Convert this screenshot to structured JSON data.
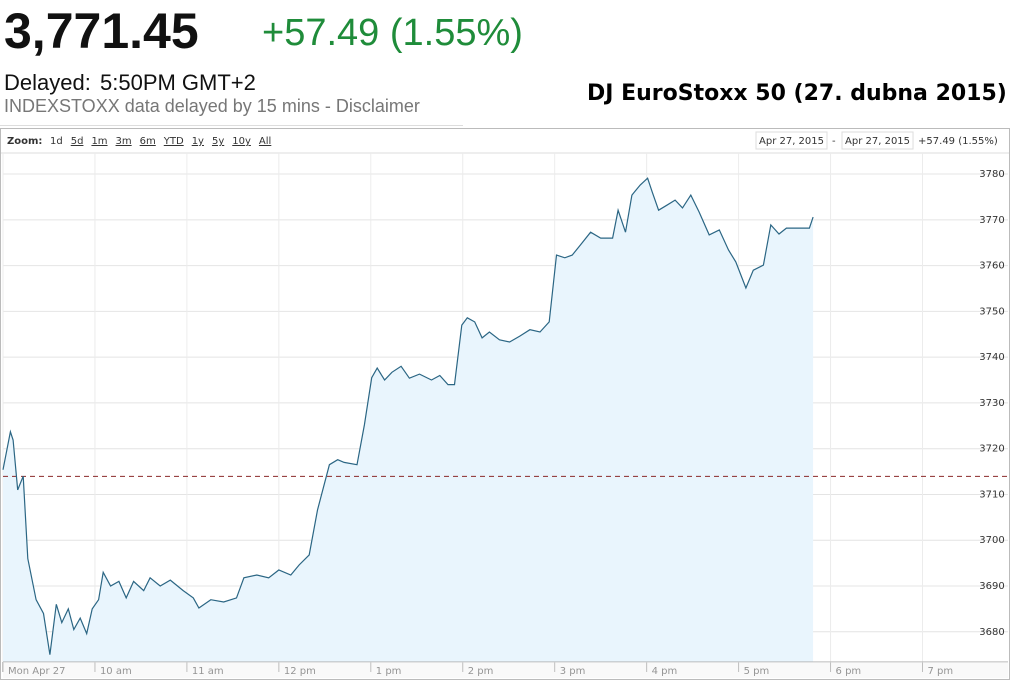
{
  "header": {
    "price": "3,771.45",
    "change": "+57.49 (1.55%)",
    "delayed_label": "Delayed:",
    "delayed_time": "5:50PM GMT+2",
    "source_note": "INDEXSTOXX data delayed by 15 mins - Disclaimer",
    "caption": "DJ EuroStoxx 50 (27. dubna 2015)"
  },
  "toolbar": {
    "zoom_label": "Zoom:",
    "zoom_options": [
      "1d",
      "5d",
      "1m",
      "3m",
      "6m",
      "YTD",
      "1y",
      "5y",
      "10y",
      "All"
    ],
    "range_start": "Apr 27, 2015",
    "range_separator": "-",
    "range_end": "Apr 27, 2015",
    "range_change": "+57.49 (1.55%)"
  },
  "chart_data": {
    "type": "line",
    "x": [
      9.0,
      9.08,
      9.11,
      9.16,
      9.22,
      9.27,
      9.36,
      9.44,
      9.51,
      9.58,
      9.64,
      9.71,
      9.77,
      9.84,
      9.91,
      9.97,
      10.04,
      10.09,
      10.17,
      10.26,
      10.34,
      10.42,
      10.53,
      10.6,
      10.71,
      10.82,
      10.96,
      11.07,
      11.13,
      11.26,
      11.4,
      11.54,
      11.62,
      11.76,
      11.89,
      12.0,
      12.13,
      12.22,
      12.33,
      12.42,
      12.55,
      12.64,
      12.71,
      12.85,
      12.93,
      13.01,
      13.07,
      13.15,
      13.23,
      13.33,
      13.42,
      13.53,
      13.66,
      13.75,
      13.84,
      13.91,
      13.99,
      14.05,
      14.13,
      14.21,
      14.29,
      14.4,
      14.51,
      14.62,
      14.73,
      14.84,
      14.94,
      15.02,
      15.11,
      15.19,
      15.28,
      15.39,
      15.5,
      15.63,
      15.69,
      15.77,
      15.84,
      15.93,
      16.01,
      16.06,
      16.13,
      16.22,
      16.31,
      16.39,
      16.48,
      16.57,
      16.68,
      16.79,
      16.89,
      16.97,
      17.08,
      17.16,
      17.27,
      17.35,
      17.44,
      17.52,
      17.69,
      17.77,
      17.81
    ],
    "values": [
      3715.4,
      3723.7,
      3721.9,
      3711.0,
      3714.0,
      3696.0,
      3687.0,
      3684.0,
      3675.0,
      3686.0,
      3682.0,
      3685.0,
      3680.5,
      3683.0,
      3679.6,
      3685.0,
      3687.0,
      3693.0,
      3690.0,
      3691.0,
      3687.4,
      3691.0,
      3689.0,
      3691.8,
      3690.0,
      3691.3,
      3689.0,
      3687.4,
      3685.2,
      3687.0,
      3686.5,
      3687.4,
      3691.8,
      3692.4,
      3691.8,
      3693.5,
      3692.4,
      3694.6,
      3696.8,
      3706.6,
      3716.5,
      3717.6,
      3717.0,
      3716.5,
      3725.2,
      3735.5,
      3737.6,
      3735.0,
      3736.7,
      3738.0,
      3735.4,
      3736.3,
      3735.0,
      3736.0,
      3734.0,
      3734.0,
      3747.0,
      3748.6,
      3747.7,
      3744.2,
      3745.5,
      3743.8,
      3743.3,
      3744.6,
      3746.0,
      3745.5,
      3747.7,
      3762.3,
      3761.7,
      3762.3,
      3764.5,
      3767.3,
      3766.0,
      3766.0,
      3772.1,
      3767.3,
      3775.4,
      3777.6,
      3779.1,
      3776.1,
      3772.1,
      3773.2,
      3774.3,
      3772.6,
      3775.4,
      3771.7,
      3766.7,
      3767.8,
      3763.4,
      3760.8,
      3755.1,
      3759.0,
      3760.1,
      3768.9,
      3766.9,
      3768.2,
      3768.2,
      3768.2,
      3770.6
    ],
    "color": "#2b6684",
    "fill_color": "#e9f5fd",
    "previous_close": 3713.96,
    "xlim": [
      9,
      19.93
    ],
    "xticks": [
      {
        "value": 9,
        "label": "Mon Apr 27"
      },
      {
        "value": 10,
        "label": "10 am"
      },
      {
        "value": 11,
        "label": "11 am"
      },
      {
        "value": 12,
        "label": "12 pm"
      },
      {
        "value": 13,
        "label": "1 pm"
      },
      {
        "value": 14,
        "label": "2 pm"
      },
      {
        "value": 15,
        "label": "3 pm"
      },
      {
        "value": 16,
        "label": "4 pm"
      },
      {
        "value": 17,
        "label": "5 pm"
      },
      {
        "value": 18,
        "label": "6 pm"
      },
      {
        "value": 19,
        "label": "7 pm"
      }
    ],
    "ylim": [
      3673.4,
      3784.6
    ],
    "yticks": [
      3680,
      3690,
      3700,
      3710,
      3720,
      3730,
      3740,
      3750,
      3760,
      3770,
      3780
    ],
    "grid": true
  }
}
